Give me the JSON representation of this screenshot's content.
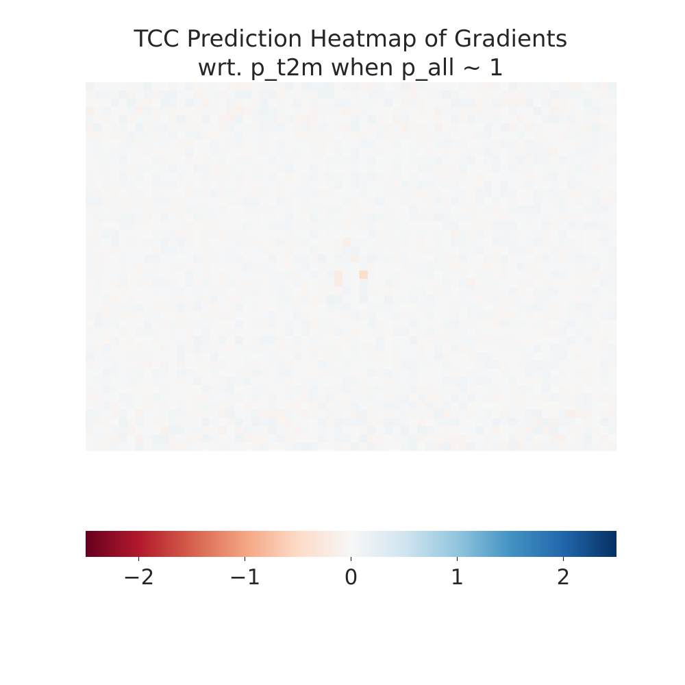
{
  "chart_data": {
    "type": "heatmap",
    "title_line1": "TCC Prediction Heatmap of Gradients",
    "title_line2": "wrt. p_t2m when p_all ~ 1",
    "grid_size": {
      "columns": 64,
      "rows": 45
    },
    "colormap": "RdBu",
    "colorbar": {
      "orientation": "horizontal",
      "placement": "below",
      "vmin": -2.5,
      "vmax": 2.5,
      "ticks": [
        -2,
        -1,
        0,
        1,
        2
      ],
      "tick_labels": [
        "−2",
        "−1",
        "0",
        "1",
        "2"
      ],
      "stops": [
        "#67001f",
        "#b2182b",
        "#d6604d",
        "#f4a582",
        "#fddbc7",
        "#f7f7f7",
        "#d1e5f0",
        "#92c5de",
        "#4393c3",
        "#2166ac",
        "#053061"
      ]
    },
    "value_range_estimate": [
      -0.6,
      0.4
    ],
    "background_value": 0.03,
    "notable_cells": [
      {
        "col": 33,
        "row": 23,
        "value": -0.45
      },
      {
        "col": 30,
        "row": 23,
        "value": -0.2
      },
      {
        "col": 30,
        "row": 24,
        "value": -0.18
      },
      {
        "col": 31,
        "row": 19,
        "value": -0.15
      },
      {
        "col": 32,
        "row": 21,
        "value": -0.12
      },
      {
        "col": 32,
        "row": 20,
        "value": 0.12
      },
      {
        "col": 33,
        "row": 26,
        "value": 0.15
      },
      {
        "col": 29,
        "row": 26,
        "value": 0.14
      },
      {
        "col": 30,
        "row": 26,
        "value": 0.12
      },
      {
        "col": 28,
        "row": 21,
        "value": 0.1
      },
      {
        "col": 33,
        "row": 24,
        "value": 0.1
      },
      {
        "col": 34,
        "row": 21,
        "value": 0.1
      },
      {
        "col": 36,
        "row": 26,
        "value": 0.1
      },
      {
        "col": 42,
        "row": 16,
        "value": 0.1
      },
      {
        "col": 39,
        "row": 31,
        "value": 0.1
      },
      {
        "col": 13,
        "row": 31,
        "value": 0.1
      },
      {
        "col": 18,
        "row": 31,
        "value": 0.1
      },
      {
        "col": 44,
        "row": 18,
        "value": -0.1
      },
      {
        "col": 0,
        "row": 3,
        "value": -0.12
      },
      {
        "col": 6,
        "row": 3,
        "value": -0.1
      },
      {
        "col": 58,
        "row": 40,
        "value": -0.15
      },
      {
        "col": 22,
        "row": 40,
        "value": -0.1
      },
      {
        "col": 17,
        "row": 4,
        "value": -0.1
      },
      {
        "col": 56,
        "row": 8,
        "value": -0.08
      },
      {
        "col": 46,
        "row": 24,
        "value": -0.1
      },
      {
        "col": 9,
        "row": 1,
        "value": 0.08
      },
      {
        "col": 63,
        "row": 1,
        "value": 0.06
      }
    ]
  }
}
